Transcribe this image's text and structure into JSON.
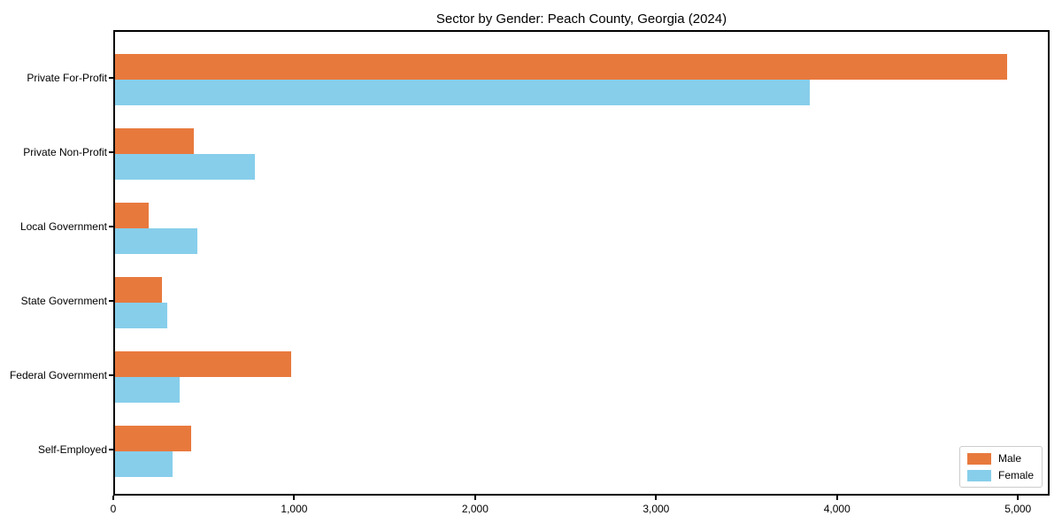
{
  "title": "Sector by Gender: Peach County, Georgia (2024)",
  "chart_data": {
    "type": "bar",
    "orientation": "horizontal",
    "title": "Sector by Gender: Peach County, Georgia (2024)",
    "xlabel": "",
    "ylabel": "",
    "categories": [
      "Private For-Profit",
      "Private Non-Profit",
      "Local Government",
      "State Government",
      "Federal Government",
      "Self-Employed"
    ],
    "series": [
      {
        "name": "Male",
        "color": "#e8793d",
        "values": [
          4930,
          435,
          185,
          260,
          975,
          420
        ]
      },
      {
        "name": "Female",
        "color": "#87ceeb",
        "values": [
          3840,
          775,
          455,
          290,
          355,
          320
        ]
      }
    ],
    "x_tick_labels": [
      "0",
      "1,000",
      "2,000",
      "3,000",
      "4,000",
      "5,000"
    ],
    "x_tick_values": [
      0,
      1000,
      2000,
      3000,
      4000,
      5000
    ],
    "xlim": [
      0,
      5175
    ],
    "grid": false,
    "legend_position": "lower right"
  },
  "legend": {
    "items": [
      {
        "label": "Male",
        "color": "#e8793d"
      },
      {
        "label": "Female",
        "color": "#87ceeb"
      }
    ]
  }
}
